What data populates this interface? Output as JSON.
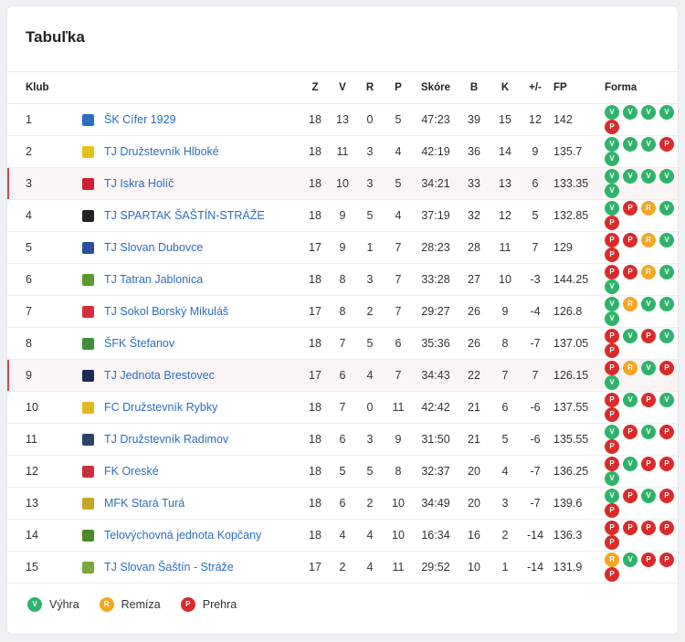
{
  "title": "Tabuľka",
  "headers": {
    "club": "Klub",
    "z": "Z",
    "v": "V",
    "r": "R",
    "p": "P",
    "score": "Skóre",
    "b": "B",
    "k": "K",
    "pm": "+/-",
    "fp": "FP",
    "form": "Forma"
  },
  "rows": [
    {
      "rank": "1",
      "club": "ŠK Cífer 1929",
      "z": "18",
      "v": "13",
      "r": "0",
      "p": "5",
      "score": "47:23",
      "b": "39",
      "k": "15",
      "pm": "12",
      "fp": "142",
      "form": [
        "V",
        "V",
        "V",
        "V",
        "P"
      ],
      "logo": "#2b6cc4",
      "hl": false
    },
    {
      "rank": "2",
      "club": "TJ Družstevník Hlboké",
      "z": "18",
      "v": "11",
      "r": "3",
      "p": "4",
      "score": "42:19",
      "b": "36",
      "k": "14",
      "pm": "9",
      "fp": "135.7",
      "form": [
        "V",
        "V",
        "V",
        "P",
        "V"
      ],
      "logo": "#e3c21b",
      "hl": false
    },
    {
      "rank": "3",
      "club": "TJ Iskra Holíč",
      "z": "18",
      "v": "10",
      "r": "3",
      "p": "5",
      "score": "34:21",
      "b": "33",
      "k": "13",
      "pm": "6",
      "fp": "133.35",
      "form": [
        "V",
        "V",
        "V",
        "V",
        "V"
      ],
      "logo": "#cc2233",
      "hl": true
    },
    {
      "rank": "4",
      "club": "TJ SPARTAK ŠAŠTÍN-STRÁŽE",
      "z": "18",
      "v": "9",
      "r": "5",
      "p": "4",
      "score": "37:19",
      "b": "32",
      "k": "12",
      "pm": "5",
      "fp": "132.85",
      "form": [
        "V",
        "P",
        "R",
        "V",
        "P"
      ],
      "logo": "#222222",
      "hl": false
    },
    {
      "rank": "5",
      "club": "TJ Slovan Dubovce",
      "z": "17",
      "v": "9",
      "r": "1",
      "p": "7",
      "score": "28:23",
      "b": "28",
      "k": "11",
      "pm": "7",
      "fp": "129",
      "form": [
        "P",
        "P",
        "R",
        "V",
        "P"
      ],
      "logo": "#2a4f9c",
      "hl": false
    },
    {
      "rank": "6",
      "club": "TJ Tatran Jablonica",
      "z": "18",
      "v": "8",
      "r": "3",
      "p": "7",
      "score": "33:28",
      "b": "27",
      "k": "10",
      "pm": "-3",
      "fp": "144.25",
      "form": [
        "P",
        "P",
        "R",
        "V",
        "V"
      ],
      "logo": "#5a9a2a",
      "hl": false
    },
    {
      "rank": "7",
      "club": "TJ Sokol Borský Mikuláš",
      "z": "17",
      "v": "8",
      "r": "2",
      "p": "7",
      "score": "29:27",
      "b": "26",
      "k": "9",
      "pm": "-4",
      "fp": "126.8",
      "form": [
        "V",
        "R",
        "V",
        "V",
        "V"
      ],
      "logo": "#d3303a",
      "hl": false
    },
    {
      "rank": "8",
      "club": "ŠFK Štefanov",
      "z": "18",
      "v": "7",
      "r": "5",
      "p": "6",
      "score": "35:36",
      "b": "26",
      "k": "8",
      "pm": "-7",
      "fp": "137.05",
      "form": [
        "P",
        "V",
        "P",
        "V",
        "P"
      ],
      "logo": "#3e8e3e",
      "hl": false
    },
    {
      "rank": "9",
      "club": "TJ Jednota Brestovec",
      "z": "17",
      "v": "6",
      "r": "4",
      "p": "7",
      "score": "34:43",
      "b": "22",
      "k": "7",
      "pm": "7",
      "fp": "126.15",
      "form": [
        "P",
        "R",
        "V",
        "P",
        "V"
      ],
      "logo": "#1d2a55",
      "hl": true
    },
    {
      "rank": "10",
      "club": "FC Družstevník Rybky",
      "z": "18",
      "v": "7",
      "r": "0",
      "p": "11",
      "score": "42:42",
      "b": "21",
      "k": "6",
      "pm": "-6",
      "fp": "137.55",
      "form": [
        "P",
        "V",
        "P",
        "V",
        "P"
      ],
      "logo": "#e2b820",
      "hl": false
    },
    {
      "rank": "11",
      "club": "TJ Družstevník Radimov",
      "z": "18",
      "v": "6",
      "r": "3",
      "p": "9",
      "score": "31:50",
      "b": "21",
      "k": "5",
      "pm": "-6",
      "fp": "135.55",
      "form": [
        "V",
        "P",
        "V",
        "P",
        "P"
      ],
      "logo": "#27456e",
      "hl": false
    },
    {
      "rank": "12",
      "club": "FK Oreské",
      "z": "18",
      "v": "5",
      "r": "5",
      "p": "8",
      "score": "32:37",
      "b": "20",
      "k": "4",
      "pm": "-7",
      "fp": "136.25",
      "form": [
        "P",
        "V",
        "P",
        "P",
        "V"
      ],
      "logo": "#c8303a",
      "hl": false
    },
    {
      "rank": "13",
      "club": "MFK Stará Turá",
      "z": "18",
      "v": "6",
      "r": "2",
      "p": "10",
      "score": "34:49",
      "b": "20",
      "k": "3",
      "pm": "-7",
      "fp": "139.6",
      "form": [
        "V",
        "P",
        "V",
        "P",
        "P"
      ],
      "logo": "#c9a526",
      "hl": false
    },
    {
      "rank": "14",
      "club": "Telovýchovná jednota Kopčany",
      "z": "18",
      "v": "4",
      "r": "4",
      "p": "10",
      "score": "16:34",
      "b": "16",
      "k": "2",
      "pm": "-14",
      "fp": "136.3",
      "form": [
        "P",
        "P",
        "P",
        "P",
        "P"
      ],
      "logo": "#4a8a2a",
      "hl": false
    },
    {
      "rank": "15",
      "club": "TJ Slovan Šaštín - Stráže",
      "z": "17",
      "v": "2",
      "r": "4",
      "p": "11",
      "score": "29:52",
      "b": "10",
      "k": "1",
      "pm": "-14",
      "fp": "131.9",
      "form": [
        "R",
        "V",
        "P",
        "P",
        "P"
      ],
      "logo": "#7aa83a",
      "hl": false
    }
  ],
  "legend": [
    {
      "code": "V",
      "label": "Výhra"
    },
    {
      "code": "R",
      "label": "Remíza"
    },
    {
      "code": "P",
      "label": "Prehra"
    }
  ]
}
